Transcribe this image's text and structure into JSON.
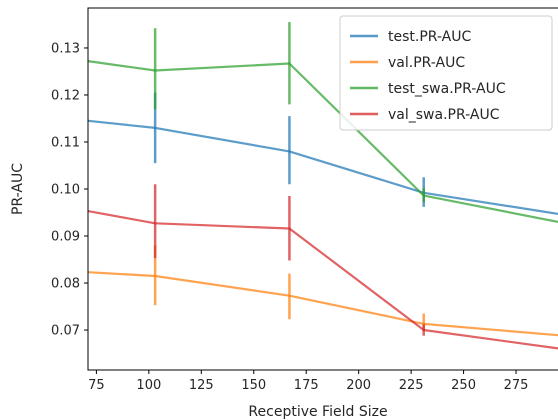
{
  "chart_data": {
    "type": "line",
    "xlabel": "Receptive Field Size",
    "ylabel": "PR-AUC",
    "xlim": [
      71,
      295
    ],
    "ylim": [
      0.0615,
      0.1385
    ],
    "xticks": [
      75,
      100,
      125,
      150,
      175,
      200,
      225,
      250,
      275
    ],
    "yticks": [
      0.07,
      0.08,
      0.09,
      0.1,
      0.11,
      0.12,
      0.13
    ],
    "ytick_labels": [
      "0.07",
      "0.08",
      "0.09",
      "0.10",
      "0.11",
      "0.12",
      "0.13"
    ],
    "legend_placement": "top-right",
    "grid": false,
    "series": [
      {
        "name": "test.PR-AUC",
        "color": "#1f77b4",
        "x": [
          71,
          103,
          167,
          231,
          295
        ],
        "y": [
          0.1145,
          0.113,
          0.108,
          0.0992,
          0.0947
        ],
        "error_x": [
          103,
          167,
          231
        ],
        "error_low": [
          0.1055,
          0.101,
          0.0962
        ],
        "error_high": [
          0.1205,
          0.1155,
          0.1025
        ]
      },
      {
        "name": "val.PR-AUC",
        "color": "#ff7f0e",
        "x": [
          71,
          103,
          167,
          231,
          295
        ],
        "y": [
          0.0823,
          0.0815,
          0.0773,
          0.0713,
          0.0689
        ],
        "error_x": [
          103,
          167,
          231
        ],
        "error_low": [
          0.0753,
          0.0723,
          0.0697
        ],
        "error_high": [
          0.088,
          0.082,
          0.0735
        ]
      },
      {
        "name": "test_swa.PR-AUC",
        "color": "#2ca02c",
        "x": [
          71,
          103,
          167,
          231,
          295
        ],
        "y": [
          0.1272,
          0.1252,
          0.1267,
          0.0986,
          0.093
        ],
        "error_x": [
          103,
          167,
          231
        ],
        "error_low": [
          0.117,
          0.118,
          0.0972
        ],
        "error_high": [
          0.1342,
          0.1355,
          0.1002
        ]
      },
      {
        "name": "val_swa.PR-AUC",
        "color": "#d62728",
        "x": [
          71,
          103,
          167,
          231,
          295
        ],
        "y": [
          0.0953,
          0.0927,
          0.0916,
          0.07,
          0.0661
        ],
        "error_x": [
          103,
          167,
          231
        ],
        "error_low": [
          0.0853,
          0.0848,
          0.0688
        ],
        "error_high": [
          0.101,
          0.0985,
          0.0712
        ]
      }
    ]
  }
}
